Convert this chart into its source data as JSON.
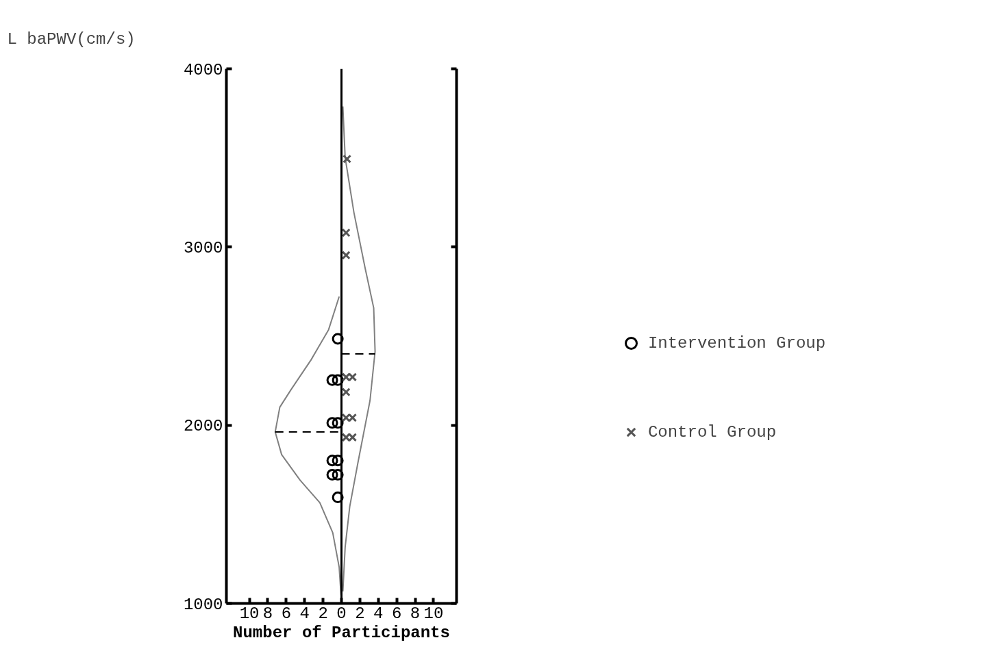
{
  "chart_data": {
    "type": "line",
    "xlabel": "Number of Participants",
    "ylabel": "L baPWV(cm/s)",
    "xlim": [
      -12.5,
      12.5
    ],
    "ylim": [
      1000,
      4000
    ],
    "xticks": [
      {
        "value": -10,
        "label": "10"
      },
      {
        "value": -8,
        "label": "8"
      },
      {
        "value": -6,
        "label": "6"
      },
      {
        "value": -4,
        "label": "4"
      },
      {
        "value": -2,
        "label": "2"
      },
      0,
      2,
      4,
      6,
      8,
      10
    ],
    "yticks": [
      1000,
      2000,
      3000,
      4000
    ],
    "grid": false,
    "legend": "right",
    "ref_lines": [
      {
        "axis": "x",
        "value": 0,
        "color": "#000000"
      }
    ],
    "series": [
      {
        "color": "#808080",
        "line_style": "solid",
        "x": [
          -0.05,
          -0.25,
          -0.95,
          -2.35,
          -4.5,
          -6.5,
          -7.2,
          -6.7,
          -5.5,
          -3.3,
          -1.4,
          -0.25
        ],
        "values": [
          1046,
          1203,
          1397,
          1565,
          1692,
          1835,
          1962,
          2101,
          2198,
          2367,
          2536,
          2722
        ]
      },
      {
        "color": "#808080",
        "line_style": "solid",
        "x": [
          0.15,
          0.4,
          0.9,
          1.8,
          3.1,
          3.65,
          3.5,
          2.55,
          1.35,
          0.4,
          0.15
        ],
        "values": [
          1067,
          1316,
          1544,
          1793,
          2139,
          2414,
          2658,
          2886,
          3194,
          3502,
          3789
        ]
      },
      {
        "type": "line",
        "color": "#000000",
        "line_style": "dashed",
        "x": [
          -7.2,
          0
        ],
        "values": [
          1962,
          1962
        ]
      },
      {
        "type": "line",
        "color": "#000000",
        "line_style": "dashed",
        "x": [
          0,
          3.65
        ],
        "values": [
          2400,
          2400
        ]
      },
      {
        "type": "scatter",
        "name": "Intervention Group",
        "marker": "circle",
        "color": "#000000",
        "x": [
          -0.4,
          -0.4,
          -1.0,
          -0.4,
          -1.0,
          -0.4,
          -1.0,
          -0.4,
          -1.0,
          -0.4
        ],
        "values": [
          2485,
          2253,
          2253,
          2013,
          2013,
          1802,
          1802,
          1722,
          1722,
          1595
        ]
      },
      {
        "type": "scatter",
        "name": "Control Group",
        "marker": "cross",
        "color": "#555555",
        "x": [
          0.6,
          0.5,
          0.5,
          0.5,
          1.2,
          0.5,
          0.5,
          1.2,
          0.5,
          1.2
        ],
        "values": [
          3494,
          3080,
          2954,
          2270,
          2270,
          2186,
          2042,
          2042,
          1932,
          1932
        ]
      }
    ]
  }
}
